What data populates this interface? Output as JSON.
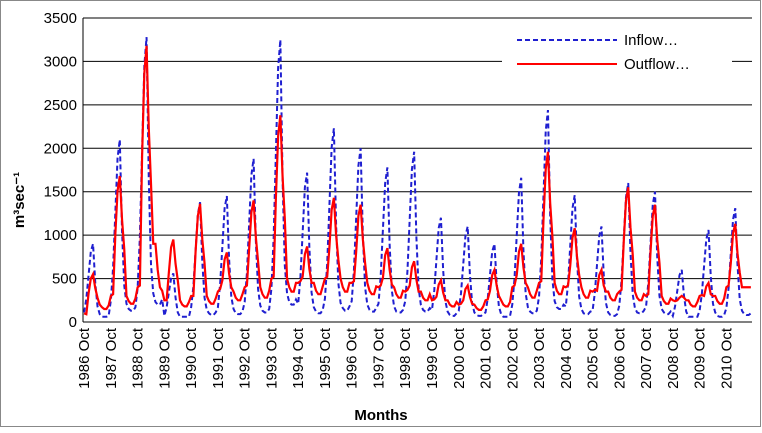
{
  "chart_data": {
    "type": "line",
    "ylabel": "m³sec⁻¹",
    "xlabel": "Months",
    "categories": [
      "1986 Oct",
      null,
      null,
      null,
      null,
      null,
      null,
      null,
      null,
      null,
      null,
      null,
      "1987 Oct",
      null,
      null,
      null,
      null,
      null,
      null,
      null,
      null,
      null,
      null,
      null,
      "1988 Oct",
      null,
      null,
      null,
      null,
      null,
      null,
      null,
      null,
      null,
      null,
      null,
      "1989 Oct",
      null,
      null,
      null,
      null,
      null,
      null,
      null,
      null,
      null,
      null,
      null,
      "1990 Oct",
      null,
      null,
      null,
      null,
      null,
      null,
      null,
      null,
      null,
      null,
      null,
      "1991 Oct",
      null,
      null,
      null,
      null,
      null,
      null,
      null,
      null,
      null,
      null,
      null,
      "1992 Oct",
      null,
      null,
      null,
      null,
      null,
      null,
      null,
      null,
      null,
      null,
      null,
      "1993 Oct",
      null,
      null,
      null,
      null,
      null,
      null,
      null,
      null,
      null,
      null,
      null,
      "1994 Oct",
      null,
      null,
      null,
      null,
      null,
      null,
      null,
      null,
      null,
      null,
      null,
      "1995 Oct",
      null,
      null,
      null,
      null,
      null,
      null,
      null,
      null,
      null,
      null,
      null,
      "1996 Oct",
      null,
      null,
      null,
      null,
      null,
      null,
      null,
      null,
      null,
      null,
      null,
      "1997 Oct",
      null,
      null,
      null,
      null,
      null,
      null,
      null,
      null,
      null,
      null,
      null,
      "1998 Oct",
      null,
      null,
      null,
      null,
      null,
      null,
      null,
      null,
      null,
      null,
      null,
      "1999 Oct",
      null,
      null,
      null,
      null,
      null,
      null,
      null,
      null,
      null,
      null,
      null,
      "2000 Oct",
      null,
      null,
      null,
      null,
      null,
      null,
      null,
      null,
      null,
      null,
      null,
      "2001 Oct",
      null,
      null,
      null,
      null,
      null,
      null,
      null,
      null,
      null,
      null,
      null,
      "2002 Oct",
      null,
      null,
      null,
      null,
      null,
      null,
      null,
      null,
      null,
      null,
      null,
      "2003 Oct",
      null,
      null,
      null,
      null,
      null,
      null,
      null,
      null,
      null,
      null,
      null,
      "2004 Oct",
      null,
      null,
      null,
      null,
      null,
      null,
      null,
      null,
      null,
      null,
      null,
      "2005 Oct",
      null,
      null,
      null,
      null,
      null,
      null,
      null,
      null,
      null,
      null,
      null,
      "2006 Oct",
      null,
      null,
      null,
      null,
      null,
      null,
      null,
      null,
      null,
      null,
      null,
      "2007 Oct",
      null,
      null,
      null,
      null,
      null,
      null,
      null,
      null,
      null,
      null,
      null,
      "2008 Oct",
      null,
      null,
      null,
      null,
      null,
      null,
      null,
      null,
      null,
      null,
      null,
      "2009 Oct",
      null,
      null,
      null,
      null,
      null,
      null,
      null,
      null,
      null,
      null,
      null,
      "2010 Oct",
      null,
      null,
      null,
      null,
      null,
      null,
      null,
      null,
      null,
      null,
      null
    ],
    "series": [
      {
        "name": "Inflow…",
        "color": "#1f1fd0",
        "linestyle": "dashed",
        "values": [
          110,
          270,
          540,
          810,
          900,
          450,
          180,
          90,
          60,
          60,
          60,
          70,
          250,
          630,
          1260,
          1890,
          2100,
          1050,
          420,
          210,
          150,
          130,
          130,
          170,
          390,
          980,
          1970,
          2950,
          3280,
          1640,
          660,
          330,
          230,
          200,
          200,
          260,
          70,
          170,
          340,
          500,
          560,
          280,
          110,
          60,
          60,
          60,
          60,
          60,
          170,
          410,
          830,
          1240,
          1380,
          690,
          280,
          140,
          100,
          80,
          80,
          110,
          170,
          440,
          870,
          1310,
          1450,
          730,
          290,
          150,
          100,
          90,
          90,
          120,
          230,
          560,
          1130,
          1690,
          1880,
          940,
          380,
          190,
          130,
          110,
          110,
          150,
          390,
          980,
          1950,
          2930,
          3250,
          1630,
          650,
          330,
          230,
          200,
          200,
          260,
          210,
          520,
          1030,
          1550,
          1720,
          860,
          340,
          170,
          120,
          100,
          100,
          140,
          270,
          670,
          1340,
          2010,
          2230,
          1120,
          450,
          220,
          160,
          130,
          130,
          180,
          240,
          600,
          1200,
          1800,
          2000,
          1000,
          400,
          200,
          140,
          120,
          120,
          160,
          210,
          530,
          1070,
          1600,
          1780,
          890,
          360,
          180,
          120,
          110,
          110,
          140,
          240,
          590,
          1180,
          1760,
          1960,
          980,
          390,
          200,
          140,
          120,
          120,
          160,
          140,
          360,
          720,
          1080,
          1200,
          600,
          240,
          120,
          80,
          70,
          70,
          100,
          130,
          330,
          660,
          990,
          1100,
          550,
          220,
          110,
          80,
          70,
          70,
          90,
          110,
          270,
          540,
          810,
          900,
          450,
          180,
          90,
          60,
          60,
          60,
          70,
          200,
          500,
          1000,
          1490,
          1660,
          830,
          330,
          170,
          120,
          100,
          100,
          130,
          290,
          730,
          1460,
          2200,
          2440,
          1220,
          490,
          240,
          170,
          150,
          150,
          200,
          180,
          440,
          880,
          1310,
          1460,
          730,
          290,
          150,
          100,
          90,
          90,
          120,
          130,
          330,
          660,
          990,
          1100,
          550,
          220,
          110,
          80,
          70,
          70,
          90,
          190,
          480,
          960,
          1440,
          1600,
          800,
          320,
          160,
          110,
          100,
          100,
          130,
          180,
          450,
          900,
          1350,
          1500,
          750,
          300,
          150,
          110,
          90,
          90,
          120,
          70,
          180,
          360,
          540,
          600,
          300,
          120,
          60,
          60,
          60,
          60,
          60,
          130,
          320,
          640,
          950,
          1060,
          530,
          210,
          110,
          70,
          60,
          60,
          80,
          160,
          390,
          790,
          1180,
          1310,
          660,
          260,
          130,
          90,
          80,
          80,
          100
        ]
      },
      {
        "name": "Outflow…",
        "color": "#ff0000",
        "linestyle": "solid",
        "values": [
          100,
          90,
          330,
          500,
          550,
          390,
          280,
          200,
          170,
          150,
          150,
          190,
          300,
          320,
          1010,
          1510,
          1680,
          1180,
          840,
          300,
          240,
          210,
          210,
          270,
          400,
          420,
          1910,
          2860,
          3180,
          2230,
          1590,
          900,
          900,
          600,
          400,
          360,
          250,
          250,
          570,
          860,
          950,
          670,
          480,
          250,
          200,
          180,
          180,
          230,
          300,
          300,
          820,
          1220,
          1360,
          950,
          680,
          300,
          240,
          210,
          210,
          270,
          350,
          380,
          480,
          720,
          800,
          560,
          400,
          350,
          280,
          250,
          250,
          320,
          400,
          420,
          840,
          1260,
          1400,
          980,
          700,
          400,
          320,
          280,
          280,
          360,
          500,
          520,
          1430,
          2140,
          2380,
          1670,
          1190,
          500,
          400,
          350,
          350,
          450,
          450,
          470,
          520,
          780,
          870,
          610,
          450,
          450,
          360,
          320,
          320,
          410,
          500,
          520,
          860,
          1290,
          1430,
          1000,
          720,
          500,
          400,
          350,
          350,
          450,
          450,
          470,
          810,
          1220,
          1350,
          950,
          680,
          450,
          360,
          320,
          320,
          410,
          400,
          420,
          510,
          770,
          850,
          600,
          430,
          400,
          320,
          280,
          280,
          360,
          350,
          370,
          420,
          630,
          700,
          490,
          350,
          350,
          280,
          250,
          250,
          320,
          250,
          260,
          290,
          430,
          480,
          340,
          250,
          250,
          200,
          180,
          180,
          230,
          200,
          210,
          250,
          380,
          420,
          290,
          210,
          200,
          160,
          140,
          140,
          180,
          250,
          260,
          360,
          540,
          600,
          420,
          300,
          250,
          200,
          180,
          180,
          230,
          400,
          420,
          540,
          810,
          900,
          630,
          450,
          400,
          320,
          280,
          280,
          360,
          450,
          470,
          1180,
          1760,
          1960,
          1370,
          980,
          450,
          360,
          320,
          320,
          410,
          400,
          420,
          650,
          970,
          1080,
          760,
          540,
          400,
          320,
          280,
          280,
          360,
          350,
          370,
          360,
          540,
          600,
          420,
          350,
          350,
          280,
          250,
          250,
          320,
          350,
          370,
          930,
          1400,
          1550,
          1090,
          780,
          350,
          280,
          250,
          250,
          320,
          300,
          320,
          810,
          1220,
          1350,
          950,
          680,
          300,
          240,
          210,
          210,
          270,
          250,
          240,
          250,
          280,
          300,
          280,
          250,
          250,
          200,
          180,
          180,
          230,
          300,
          310,
          300,
          410,
          450,
          320,
          300,
          300,
          240,
          210,
          210,
          270,
          400,
          420,
          680,
          1020,
          1130,
          790,
          570,
          400,
          400,
          400,
          400,
          400
        ]
      }
    ],
    "ylim": [
      0,
      3500
    ],
    "yticks": [
      0,
      500,
      1000,
      1500,
      2000,
      2500,
      3000,
      3500
    ],
    "grid": true,
    "legend": "top-right"
  }
}
